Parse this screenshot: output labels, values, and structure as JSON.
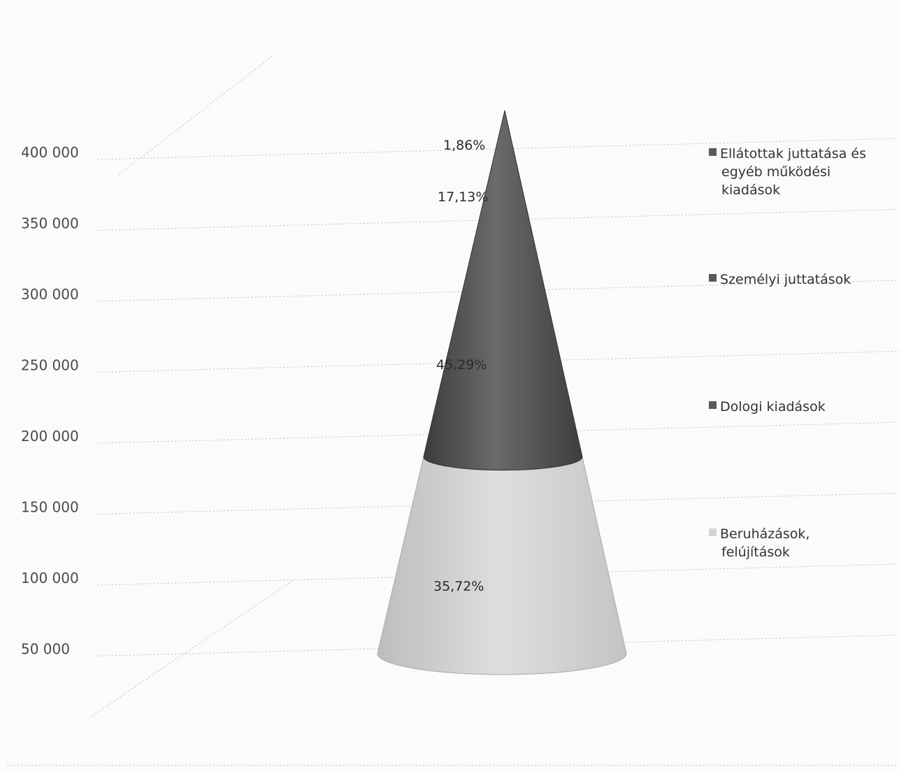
{
  "chart_data": {
    "type": "cone",
    "title": "",
    "xlabel": "",
    "ylabel": "",
    "y_ticks": [
      "50 000",
      "100 000",
      "150 000",
      "200 000",
      "250 000",
      "300 000",
      "350 000",
      "400 000"
    ],
    "y_tick_values": [
      50000,
      100000,
      150000,
      200000,
      250000,
      300000,
      350000,
      400000
    ],
    "ylim": [
      0,
      450000
    ],
    "segments": [
      {
        "name": "Beruházások, felújítások",
        "percent_label": "35,72%",
        "percent": 35.72,
        "color": "#cfcfcf"
      },
      {
        "name": "Dologi kiadások",
        "percent_label": "45,29%",
        "percent": 45.29,
        "color": "#565656"
      },
      {
        "name": "Személyi juttatások",
        "percent_label": "17,13%",
        "percent": 17.13,
        "color": "#4a4a4a"
      },
      {
        "name": "Ellátottak juttatása és egyéb működési kiadások",
        "percent_label": "1,86%",
        "percent": 1.86,
        "color": "#3d3d3d"
      }
    ],
    "legend": {
      "placement": "right",
      "entries": [
        {
          "lines": [
            "Ellátottak juttatása és",
            "egyéb működési",
            "kiadások"
          ],
          "color": "#5a5a5a"
        },
        {
          "lines": [
            "Személyi juttatások"
          ],
          "color": "#5a5a5a"
        },
        {
          "lines": [
            "Dologi kiadások"
          ],
          "color": "#5a5a5a"
        },
        {
          "lines": [
            "Beruházások,",
            "felújítások"
          ],
          "color": "#d4d4d4"
        }
      ]
    },
    "grid": true
  }
}
